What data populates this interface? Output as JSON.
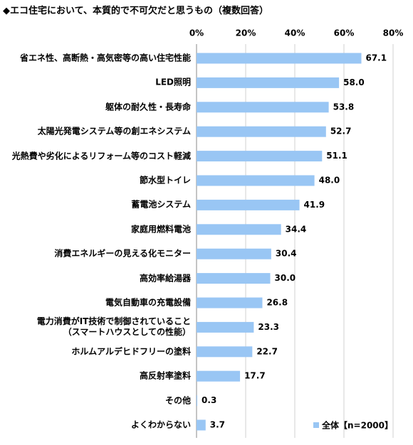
{
  "chart_data": {
    "type": "hbar",
    "title": "◆エコ住宅において、本質的で不可欠だと思うもの（複数回答）",
    "categories": [
      "省エネ性、高断熱・高気密等の高い住宅性能",
      "LED照明",
      "躯体の耐久性・長寿命",
      "太陽光発電システム等の創エネシステム",
      "光熱費や劣化によるリフォーム等のコスト軽減",
      "節水型トイレ",
      "蓄電池システム",
      "家庭用燃料電池",
      "消費エネルギーの見える化モニター",
      "高効率給湯器",
      "電気自動車の充電設備",
      "電力消費がIT技術で制御されていること\n（スマートハウスとしての性能）",
      "ホルムアルデヒドフリーの塗料",
      "高反射率塗料",
      "その他",
      "よくわからない"
    ],
    "series": [
      {
        "name": "全体【n=2000】",
        "color": "#99c6f4",
        "values": [
          67.1,
          58.0,
          53.8,
          52.7,
          51.1,
          48.0,
          41.9,
          34.4,
          30.4,
          30.0,
          26.8,
          23.3,
          22.7,
          17.7,
          0.3,
          3.7
        ],
        "value_labels": [
          "67.1",
          "58.0",
          "53.8",
          "52.7",
          "51.1",
          "48.0",
          "41.9",
          "34.4",
          "30.4",
          "30.0",
          "26.8",
          "23.3",
          "22.7",
          "17.7",
          "0.3",
          "3.7"
        ]
      }
    ],
    "xlim": [
      0,
      80
    ],
    "xticks": [
      {
        "value": 0,
        "label": "0%"
      },
      {
        "value": 20,
        "label": "20%"
      },
      {
        "value": 40,
        "label": "40%"
      },
      {
        "value": 60,
        "label": "60%"
      },
      {
        "value": 80,
        "label": "80%"
      }
    ],
    "grid": true,
    "legend": "bottom-right"
  }
}
